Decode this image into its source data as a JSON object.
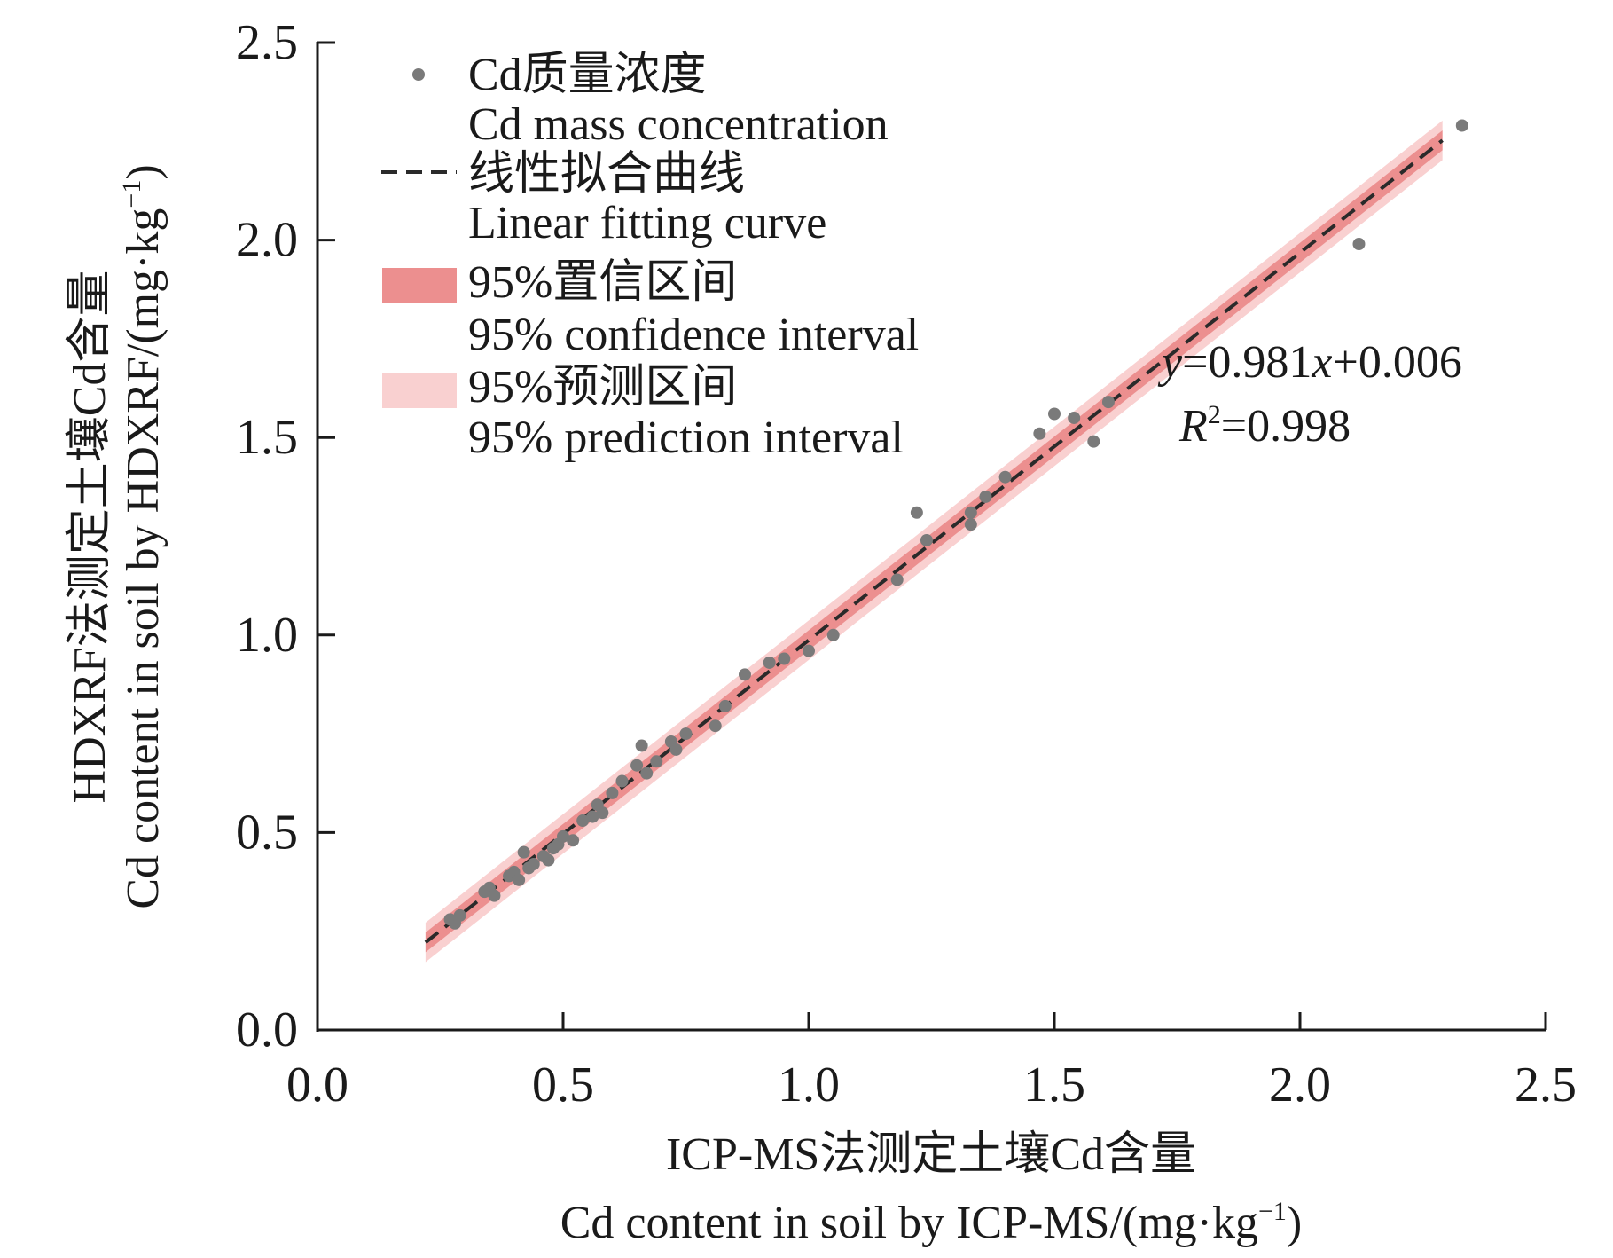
{
  "chart_data": {
    "type": "scatter",
    "title": "",
    "xlabel_cn": "ICP-MS法测定土壤Cd含量",
    "xlabel_en": "Cd content in soil by ICP-MS/(mg·kg",
    "ylabel_cn": "HDXRF法测定土壤Cd含量",
    "ylabel_en": "Cd content in soil by HDXRF/(mg·kg",
    "unit_exponent": "−1",
    "unit_close": ")",
    "xlim": [
      0,
      2.5
    ],
    "ylim": [
      0,
      2.5
    ],
    "xticks": [
      0.0,
      0.5,
      1.0,
      1.5,
      2.0,
      2.5
    ],
    "yticks": [
      0.0,
      0.5,
      1.0,
      1.5,
      2.0,
      2.5
    ],
    "xtick_labels": [
      "0.0",
      "0.5",
      "1.0",
      "1.5",
      "2.0",
      "2.5"
    ],
    "ytick_labels": [
      "0.0",
      "0.5",
      "1.0",
      "1.5",
      "2.0",
      "2.5"
    ],
    "fit": {
      "slope": 0.981,
      "intercept": 0.006,
      "x_range": [
        0.22,
        2.29
      ]
    },
    "confidence_halfwidth": 0.025,
    "prediction_halfwidth": 0.05,
    "equation": {
      "y_var": "y",
      "eq_rest": "=0.981",
      "x_var": "x",
      "eq_tail": "+0.006",
      "r_var": "R",
      "r_sup": "2",
      "r_value": "=0.998"
    },
    "legend": {
      "points_cn": "Cd质量浓度",
      "points_en": "Cd mass concentration",
      "fit_cn": "线性拟合曲线",
      "fit_en": "Linear fitting curve",
      "ci_cn": "95%置信区间",
      "ci_en": "95% confidence interval",
      "pi_cn": "95%预测区间",
      "pi_en": "95% prediction interval"
    },
    "colors": {
      "points": "#7a7a7a",
      "fit_line": "#2a2a2a",
      "ci_band": "#ec8f8f",
      "pi_band": "#f9d0d0",
      "axis": "#1a1a1a"
    },
    "points": [
      {
        "x": 0.27,
        "y": 0.28
      },
      {
        "x": 0.28,
        "y": 0.27
      },
      {
        "x": 0.29,
        "y": 0.29
      },
      {
        "x": 0.34,
        "y": 0.35
      },
      {
        "x": 0.35,
        "y": 0.36
      },
      {
        "x": 0.36,
        "y": 0.34
      },
      {
        "x": 0.39,
        "y": 0.39
      },
      {
        "x": 0.4,
        "y": 0.4
      },
      {
        "x": 0.41,
        "y": 0.38
      },
      {
        "x": 0.42,
        "y": 0.45
      },
      {
        "x": 0.43,
        "y": 0.41
      },
      {
        "x": 0.44,
        "y": 0.42
      },
      {
        "x": 0.46,
        "y": 0.44
      },
      {
        "x": 0.47,
        "y": 0.43
      },
      {
        "x": 0.48,
        "y": 0.46
      },
      {
        "x": 0.49,
        "y": 0.47
      },
      {
        "x": 0.5,
        "y": 0.49
      },
      {
        "x": 0.52,
        "y": 0.48
      },
      {
        "x": 0.54,
        "y": 0.53
      },
      {
        "x": 0.56,
        "y": 0.54
      },
      {
        "x": 0.57,
        "y": 0.57
      },
      {
        "x": 0.58,
        "y": 0.55
      },
      {
        "x": 0.6,
        "y": 0.6
      },
      {
        "x": 0.62,
        "y": 0.63
      },
      {
        "x": 0.65,
        "y": 0.67
      },
      {
        "x": 0.66,
        "y": 0.72
      },
      {
        "x": 0.67,
        "y": 0.65
      },
      {
        "x": 0.69,
        "y": 0.68
      },
      {
        "x": 0.72,
        "y": 0.73
      },
      {
        "x": 0.73,
        "y": 0.71
      },
      {
        "x": 0.75,
        "y": 0.75
      },
      {
        "x": 0.81,
        "y": 0.77
      },
      {
        "x": 0.83,
        "y": 0.82
      },
      {
        "x": 0.87,
        "y": 0.9
      },
      {
        "x": 0.92,
        "y": 0.93
      },
      {
        "x": 0.95,
        "y": 0.94
      },
      {
        "x": 1.0,
        "y": 0.96
      },
      {
        "x": 1.05,
        "y": 1.0
      },
      {
        "x": 1.18,
        "y": 1.14
      },
      {
        "x": 1.22,
        "y": 1.31
      },
      {
        "x": 1.24,
        "y": 1.24
      },
      {
        "x": 1.33,
        "y": 1.31
      },
      {
        "x": 1.33,
        "y": 1.28
      },
      {
        "x": 1.36,
        "y": 1.35
      },
      {
        "x": 1.4,
        "y": 1.4
      },
      {
        "x": 1.47,
        "y": 1.51
      },
      {
        "x": 1.5,
        "y": 1.56
      },
      {
        "x": 1.54,
        "y": 1.55
      },
      {
        "x": 1.58,
        "y": 1.49
      },
      {
        "x": 1.61,
        "y": 1.59
      },
      {
        "x": 2.12,
        "y": 1.99
      },
      {
        "x": 2.33,
        "y": 2.29
      }
    ]
  }
}
